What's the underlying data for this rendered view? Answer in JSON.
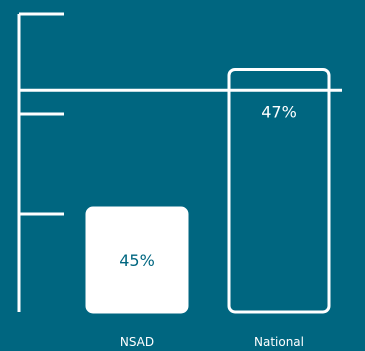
{
  "colors": {
    "background": "#006680",
    "line": "#ffffff",
    "bar_nsad_fill": "#ffffff",
    "bar_national_fill": "#006680",
    "nsad_label_text": "#006680"
  },
  "chart_data": {
    "type": "bar",
    "categories": [
      "NSAD",
      "National"
    ],
    "values": [
      45,
      47
    ],
    "data_labels": [
      "45%",
      "47%"
    ],
    "title": "",
    "xlabel": "",
    "ylabel": "",
    "ylim": [
      43.5,
      47.8
    ],
    "reference_line": 46.7,
    "grid": false
  }
}
